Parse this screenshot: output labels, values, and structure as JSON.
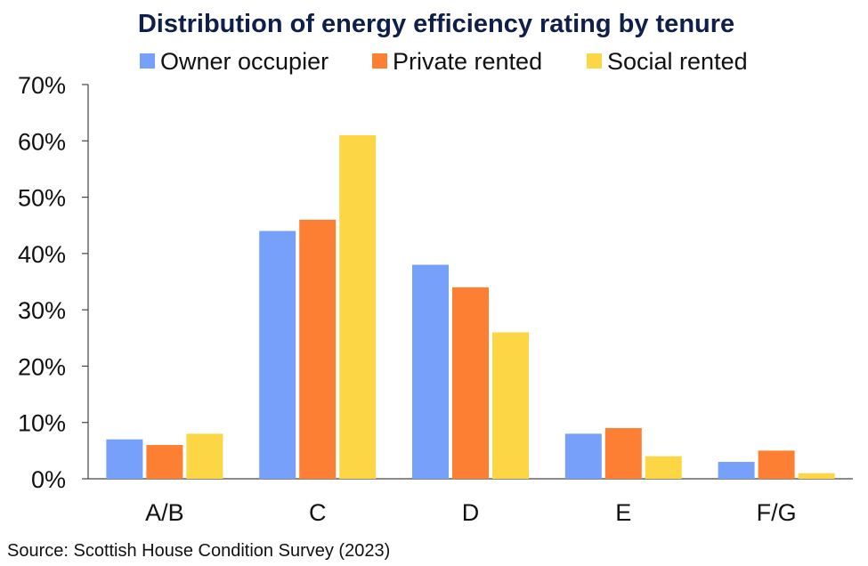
{
  "chart_data": {
    "type": "bar",
    "title": "Distribution of energy efficiency rating by tenure",
    "categories": [
      "A/B",
      "C",
      "D",
      "E",
      "F/G"
    ],
    "series": [
      {
        "name": "Owner occupier",
        "color": "#77a0fb",
        "values": [
          7,
          44,
          38,
          8,
          3
        ]
      },
      {
        "name": "Private rented",
        "color": "#fd7f33",
        "values": [
          6,
          46,
          34,
          9,
          5
        ]
      },
      {
        "name": "Social rented",
        "color": "#fdd645",
        "values": [
          8,
          61,
          26,
          4,
          1
        ]
      }
    ],
    "ylim": [
      0,
      70
    ],
    "yticks": [
      0,
      10,
      20,
      30,
      40,
      50,
      60,
      70
    ],
    "ytick_labels": [
      "0%",
      "10%",
      "20%",
      "30%",
      "40%",
      "50%",
      "60%",
      "70%"
    ],
    "xlabel": "",
    "ylabel": "",
    "legend": "top-center",
    "grid": false
  },
  "source": "Source: Scottish House Condition Survey (2023)"
}
